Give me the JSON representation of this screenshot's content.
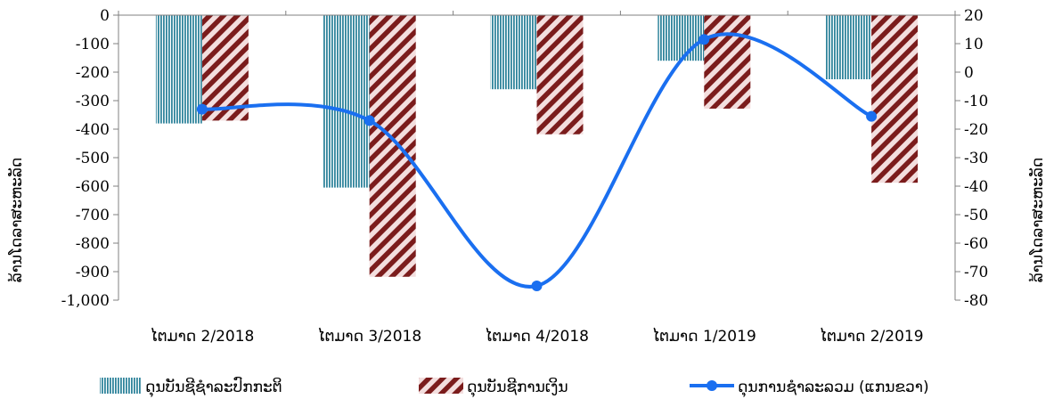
{
  "chart_data": {
    "type": "bar",
    "categories": [
      "ໄຕມາດ 2/2018",
      "ໄຕມາດ 3/2018",
      "ໄຕມາດ 4/2018",
      "ໄຕມາດ 1/2019",
      "ໄຕມາດ 2/2019"
    ],
    "series": [
      {
        "name": "ດຸນບັນຊີຊໍາລະປົກກະຕິ",
        "type": "bar",
        "axis": "left",
        "pattern": "vertical-stripes",
        "color": "#31859c",
        "values": [
          -380,
          -605,
          -260,
          -160,
          -225
        ]
      },
      {
        "name": "ດຸນບັນຊີການເງິນ",
        "type": "bar",
        "axis": "left",
        "pattern": "diagonal-stripes",
        "color": "#7b1c1c",
        "values": [
          -370,
          -918,
          -418,
          -328,
          -588
        ]
      },
      {
        "name": "ດຸນການຊໍາລະລວມ (ແກນຂວາ)",
        "type": "line",
        "axis": "right",
        "color": "#1a6ff0",
        "smooth": true,
        "values": [
          -13,
          -17,
          -75,
          11.5,
          -15.5
        ]
      }
    ],
    "y_left": {
      "label": "ລ້ານໂດລາສະຫະລັດ",
      "min": -1000,
      "max": 0,
      "step": 100,
      "tick_labels": [
        "0",
        "-100",
        "-200",
        "-300",
        "-400",
        "-500",
        "-600",
        "-700",
        "-800",
        "-900",
        "-1,000"
      ]
    },
    "y_right": {
      "label": "ລ້ານໂດລາສະຫະລັດ",
      "min": -80,
      "max": 20,
      "step": 10,
      "tick_labels": [
        "20",
        "10",
        "0",
        "-10",
        "-20",
        "-30",
        "-40",
        "-50",
        "-60",
        "-70",
        "-80"
      ]
    },
    "grid": false,
    "legend_position": "bottom"
  }
}
